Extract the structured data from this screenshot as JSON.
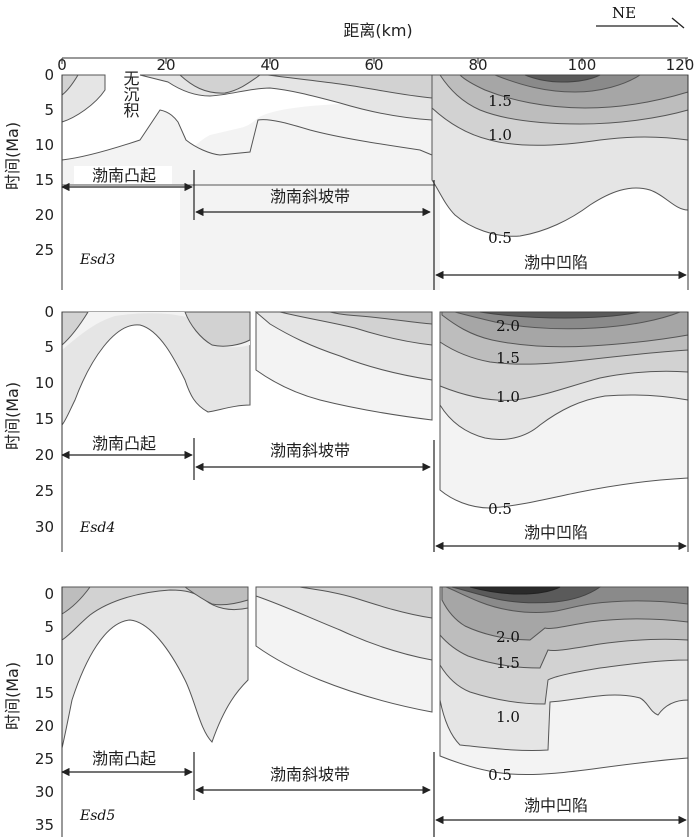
{
  "header": {
    "distance_label": "距离(km)",
    "direction": "NE"
  },
  "colors": {
    "frame": "#333333",
    "contour_line": "#3a3a3a",
    "fill_levels": [
      "#f3f3f3",
      "#e5e5e5",
      "#d2d2d2",
      "#bdbdbd",
      "#a6a6a6",
      "#8a8a8a",
      "#5a5a5a"
    ]
  },
  "axis_x": {
    "ticks": [
      "0",
      "20",
      "40",
      "60",
      "80",
      "100",
      "120"
    ]
  },
  "panels": [
    {
      "id": "panel-1",
      "ylabel": "时间(Ma)",
      "yticks": [
        "0",
        "5",
        "10",
        "15",
        "20",
        "25"
      ],
      "unit": "Esd3",
      "no_deposition": "无沉积",
      "contour_labels": [
        "1.5",
        "1.0",
        "0.5"
      ],
      "zones": [
        "渤南凸起",
        "渤南斜坡带",
        "渤中凹陷"
      ]
    },
    {
      "id": "panel-2",
      "ylabel": "时间(Ma)",
      "yticks": [
        "0",
        "5",
        "10",
        "15",
        "20",
        "25",
        "30"
      ],
      "unit": "Esd4",
      "contour_labels": [
        "2.0",
        "1.5",
        "1.0",
        "0.5"
      ],
      "zones": [
        "渤南凸起",
        "渤南斜坡带",
        "渤中凹陷"
      ]
    },
    {
      "id": "panel-3",
      "ylabel": "时间(Ma)",
      "yticks": [
        "0",
        "5",
        "10",
        "15",
        "20",
        "25",
        "30",
        "35"
      ],
      "unit": "Esd5",
      "contour_labels": [
        "2.0",
        "1.5",
        "1.0",
        "0.5"
      ],
      "zones": [
        "渤南凸起",
        "渤南斜坡带",
        "渤中凹陷"
      ]
    }
  ]
}
